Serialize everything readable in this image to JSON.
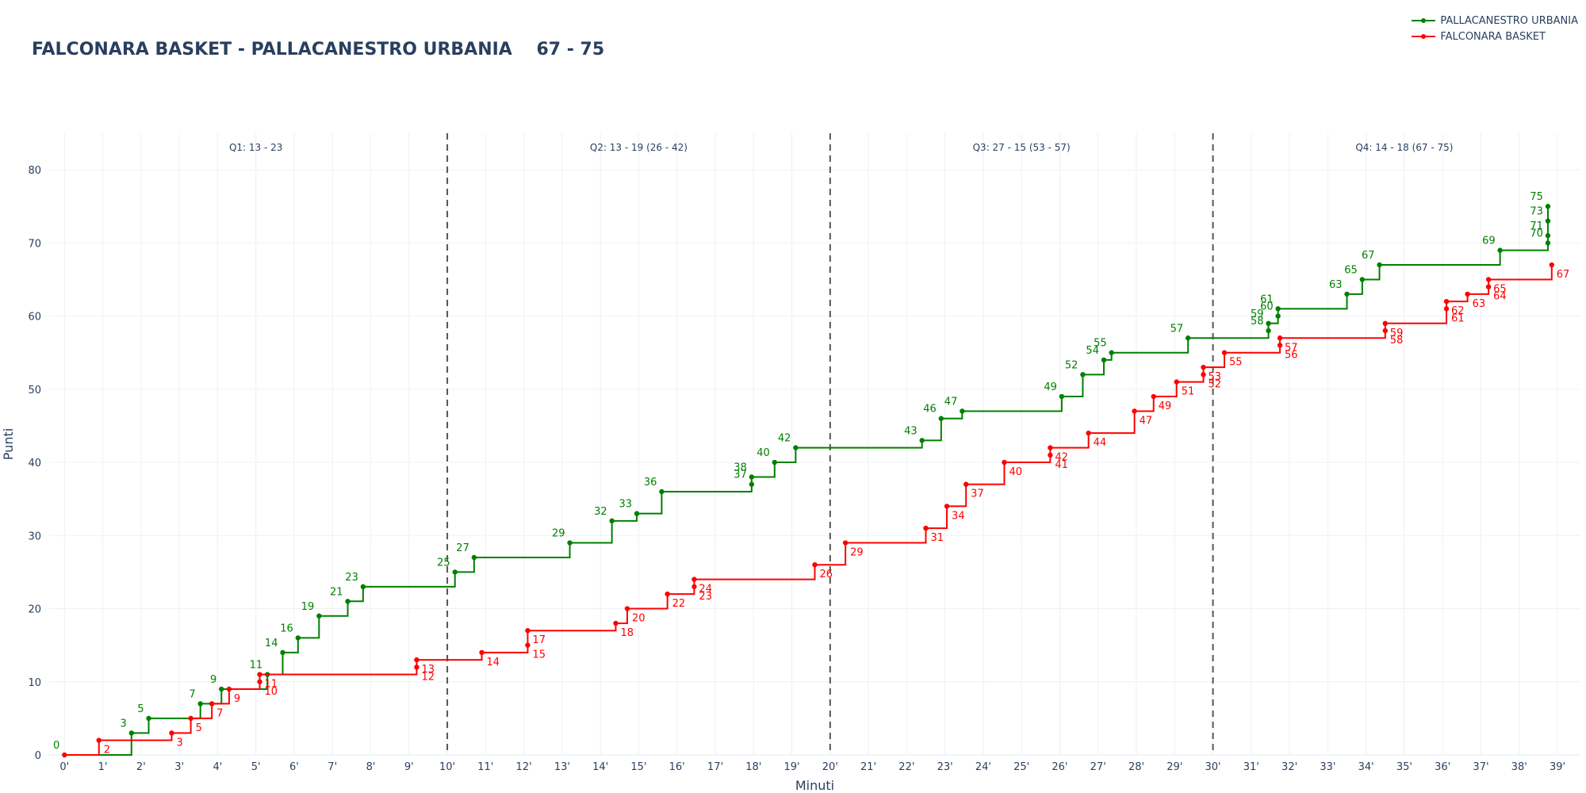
{
  "chart_data": {
    "type": "line",
    "title": "FALCONARA BASKET - PALLACANESTRO URBANIA    67 - 75",
    "xlabel": "Minuti",
    "ylabel": "Punti",
    "xlim": [
      -0.4,
      39.6
    ],
    "ylim": [
      0,
      85
    ],
    "x_tick_labels": [
      "0'",
      "1'",
      "2'",
      "3'",
      "4'",
      "5'",
      "6'",
      "7'",
      "8'",
      "9'",
      "10'",
      "11'",
      "12'",
      "13'",
      "14'",
      "15'",
      "16'",
      "17'",
      "18'",
      "19'",
      "20'",
      "21'",
      "22'",
      "23'",
      "24'",
      "25'",
      "26'",
      "27'",
      "28'",
      "29'",
      "30'",
      "31'",
      "32'",
      "33'",
      "34'",
      "35'",
      "36'",
      "37'",
      "38'",
      "39'"
    ],
    "y_ticks": [
      0,
      10,
      20,
      30,
      40,
      50,
      60,
      70,
      80
    ],
    "grid": true,
    "legend_position": "top-right",
    "quarter_dividers": [
      10,
      20,
      30
    ],
    "quarter_labels": [
      {
        "text": "Q1: 13 - 23",
        "x": 5
      },
      {
        "text": "Q2: 13 - 19 (26 - 42)",
        "x": 15
      },
      {
        "text": "Q3: 27 - 15 (53 - 57)",
        "x": 25
      },
      {
        "text": "Q4: 14 - 18 (67 - 75)",
        "x": 35
      }
    ],
    "series": [
      {
        "name": "PALLACANESTRO URBANIA",
        "color": "#008000",
        "label_side": "above",
        "points": [
          [
            0,
            0
          ],
          [
            1.75,
            3
          ],
          [
            2.2,
            5
          ],
          [
            3.55,
            7
          ],
          [
            4.1,
            9
          ],
          [
            5.3,
            11
          ],
          [
            5.7,
            14
          ],
          [
            6.1,
            16
          ],
          [
            6.65,
            19
          ],
          [
            7.4,
            21
          ],
          [
            7.8,
            23
          ],
          [
            10.2,
            25
          ],
          [
            10.7,
            27
          ],
          [
            13.2,
            29
          ],
          [
            14.3,
            32
          ],
          [
            14.95,
            33
          ],
          [
            15.6,
            36
          ],
          [
            17.95,
            37
          ],
          [
            17.95,
            38
          ],
          [
            18.55,
            40
          ],
          [
            19.1,
            42
          ],
          [
            22.4,
            43
          ],
          [
            22.9,
            46
          ],
          [
            23.45,
            47
          ],
          [
            26.05,
            49
          ],
          [
            26.6,
            52
          ],
          [
            27.15,
            54
          ],
          [
            27.35,
            55
          ],
          [
            29.35,
            57
          ],
          [
            31.45,
            58
          ],
          [
            31.45,
            59
          ],
          [
            31.7,
            60
          ],
          [
            31.7,
            61
          ],
          [
            33.5,
            63
          ],
          [
            33.9,
            65
          ],
          [
            34.35,
            67
          ],
          [
            37.5,
            69
          ],
          [
            38.75,
            70
          ],
          [
            38.75,
            71
          ],
          [
            38.75,
            73
          ],
          [
            38.75,
            75
          ]
        ],
        "labels": [
          [
            1.75,
            3
          ],
          [
            2.2,
            5
          ],
          [
            3.55,
            7
          ],
          [
            4.1,
            9
          ],
          [
            5.3,
            11
          ],
          [
            5.7,
            14
          ],
          [
            6.1,
            16
          ],
          [
            6.65,
            19
          ],
          [
            7.4,
            21
          ],
          [
            7.8,
            23
          ],
          [
            10.2,
            25
          ],
          [
            10.7,
            27
          ],
          [
            13.2,
            29
          ],
          [
            14.3,
            32
          ],
          [
            14.95,
            33
          ],
          [
            15.6,
            36
          ],
          [
            17.95,
            37
          ],
          [
            17.95,
            38
          ],
          [
            18.55,
            40
          ],
          [
            19.1,
            42
          ],
          [
            22.4,
            43
          ],
          [
            22.9,
            46
          ],
          [
            23.45,
            47
          ],
          [
            26.05,
            49
          ],
          [
            26.6,
            52
          ],
          [
            27.15,
            54
          ],
          [
            27.35,
            55
          ],
          [
            29.35,
            57
          ],
          [
            31.45,
            58
          ],
          [
            31.45,
            59
          ],
          [
            31.7,
            60
          ],
          [
            31.7,
            61
          ],
          [
            33.5,
            63
          ],
          [
            33.9,
            65
          ],
          [
            34.35,
            67
          ],
          [
            37.5,
            69
          ],
          [
            38.75,
            70
          ],
          [
            38.75,
            71
          ],
          [
            38.75,
            73
          ],
          [
            38.75,
            75
          ]
        ]
      },
      {
        "name": "FALCONARA BASKET",
        "color": "#ff0000",
        "label_side": "below",
        "points": [
          [
            0,
            0
          ],
          [
            0.9,
            2
          ],
          [
            2.8,
            3
          ],
          [
            3.3,
            5
          ],
          [
            3.85,
            7
          ],
          [
            4.3,
            9
          ],
          [
            5.1,
            10
          ],
          [
            5.1,
            11
          ],
          [
            9.2,
            12
          ],
          [
            9.2,
            13
          ],
          [
            10.9,
            14
          ],
          [
            12.1,
            15
          ],
          [
            12.1,
            17
          ],
          [
            14.4,
            18
          ],
          [
            14.7,
            20
          ],
          [
            15.75,
            22
          ],
          [
            16.45,
            23
          ],
          [
            16.45,
            24
          ],
          [
            19.6,
            26
          ],
          [
            20.4,
            29
          ],
          [
            22.5,
            31
          ],
          [
            23.05,
            34
          ],
          [
            23.55,
            37
          ],
          [
            24.55,
            40
          ],
          [
            25.75,
            41
          ],
          [
            25.75,
            42
          ],
          [
            26.75,
            44
          ],
          [
            27.95,
            47
          ],
          [
            28.45,
            49
          ],
          [
            29.05,
            51
          ],
          [
            29.75,
            52
          ],
          [
            29.75,
            53
          ],
          [
            30.3,
            55
          ],
          [
            31.75,
            56
          ],
          [
            31.75,
            57
          ],
          [
            34.5,
            58
          ],
          [
            34.5,
            59
          ],
          [
            36.1,
            61
          ],
          [
            36.1,
            62
          ],
          [
            36.65,
            63
          ],
          [
            37.2,
            64
          ],
          [
            37.2,
            65
          ],
          [
            38.85,
            67
          ]
        ],
        "labels": [
          [
            0.9,
            2
          ],
          [
            2.8,
            3
          ],
          [
            3.3,
            5
          ],
          [
            3.85,
            7
          ],
          [
            4.3,
            9
          ],
          [
            5.1,
            10
          ],
          [
            5.1,
            11
          ],
          [
            9.2,
            12
          ],
          [
            9.2,
            13
          ],
          [
            10.9,
            14
          ],
          [
            12.1,
            15
          ],
          [
            12.1,
            17
          ],
          [
            14.4,
            18
          ],
          [
            14.7,
            20
          ],
          [
            15.75,
            22
          ],
          [
            16.45,
            23
          ],
          [
            16.45,
            24
          ],
          [
            19.6,
            26
          ],
          [
            20.4,
            29
          ],
          [
            22.5,
            31
          ],
          [
            23.05,
            34
          ],
          [
            23.55,
            37
          ],
          [
            24.55,
            40
          ],
          [
            25.75,
            41
          ],
          [
            25.75,
            42
          ],
          [
            26.75,
            44
          ],
          [
            27.95,
            47
          ],
          [
            28.45,
            49
          ],
          [
            29.05,
            51
          ],
          [
            29.75,
            52
          ],
          [
            29.75,
            53
          ],
          [
            30.3,
            55
          ],
          [
            31.75,
            56
          ],
          [
            31.75,
            57
          ],
          [
            34.5,
            58
          ],
          [
            34.5,
            59
          ],
          [
            36.1,
            61
          ],
          [
            36.1,
            62
          ],
          [
            36.65,
            63
          ],
          [
            37.2,
            64
          ],
          [
            37.2,
            65
          ],
          [
            38.85,
            67
          ]
        ]
      }
    ],
    "origin_label": {
      "x": 0,
      "y": 0,
      "text": "0"
    }
  }
}
